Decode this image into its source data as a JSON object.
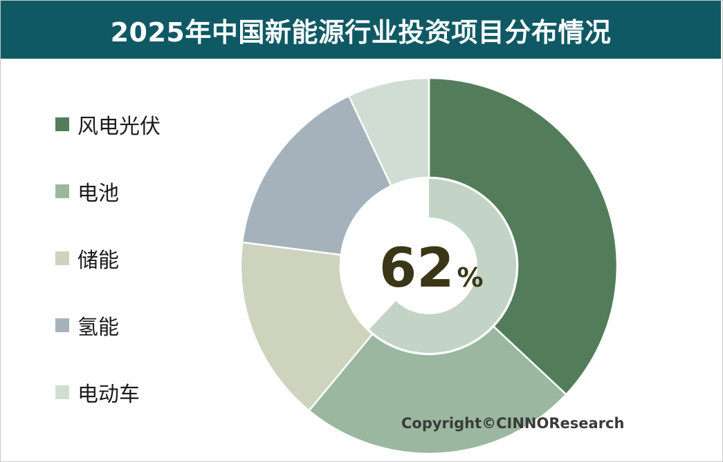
{
  "header": {
    "title": "2025年中国新能源行业投资项目分布情况"
  },
  "chart_data": {
    "type": "pie",
    "subtype": "donut",
    "title": "2025年中国新能源行业投资项目分布情况",
    "categories": [
      "风电光伏",
      "电池",
      "储能",
      "氢能",
      "电动车"
    ],
    "values": [
      37,
      24,
      16,
      16,
      7
    ],
    "unit": "%",
    "colors": [
      "#537d5a",
      "#9bb7a0",
      "#cdd3bd",
      "#a5b2bb",
      "#cfddd3"
    ],
    "legend_position": "left",
    "inner_ring": {
      "value": 62,
      "unit": "%",
      "color": "#c3d4c6"
    },
    "center_label": {
      "value": "62",
      "unit": "%",
      "color": "#3b3616"
    }
  },
  "footer": {
    "copyright": "Copyright©CINNOResearch"
  }
}
